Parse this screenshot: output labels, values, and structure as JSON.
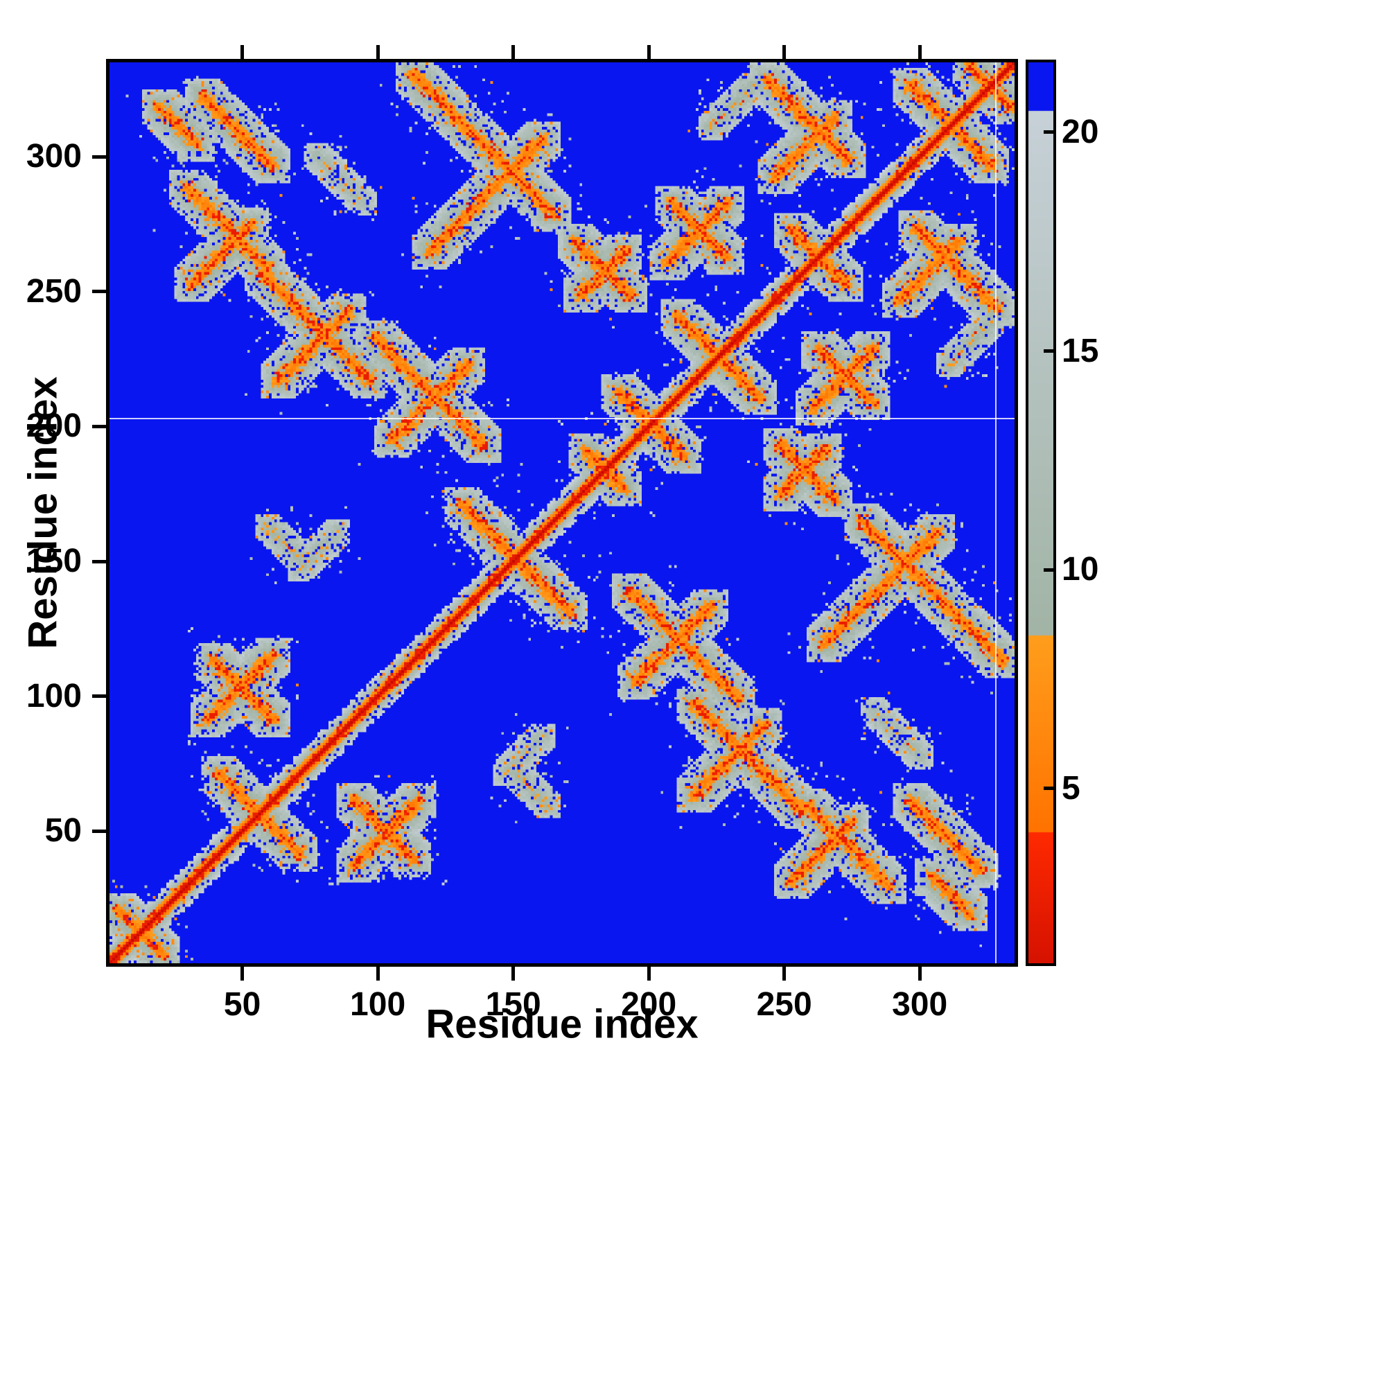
{
  "chart_data": {
    "type": "heatmap",
    "title": "",
    "xlabel": "Residue index",
    "ylabel": "Residue index",
    "x_range": [
      1,
      335
    ],
    "y_range": [
      1,
      335
    ],
    "x_ticks": [
      50,
      100,
      150,
      200,
      250,
      300
    ],
    "y_ticks": [
      50,
      100,
      150,
      200,
      250,
      300
    ],
    "n_residues": 335,
    "grid": false,
    "legend": "colorbar-right",
    "description": "Symmetric residue-residue distance map (contact map) of a ~335-residue protein. Red diagonal = sequential neighbours, orange cores = close contacts, gray halo = mid-range distances, blue = far/no contact.",
    "background_value": 30,
    "diagonal_step": 2.55,
    "missing_residue_lines": {
      "row": 203,
      "col": 328
    },
    "colorbar": {
      "ticks": [
        5,
        10,
        15,
        20
      ],
      "vmin": 1,
      "vmax": 21.6,
      "bands": [
        {
          "name": "red",
          "upto": 4.0,
          "color_lo": "#c80a00",
          "color_hi": "#ff2a00"
        },
        {
          "name": "orange",
          "upto": 8.5,
          "color_lo": "#ff7300",
          "color_hi": "#ff9e1c"
        },
        {
          "name": "gray",
          "upto": 20.5,
          "color_lo": "#a2b4a6",
          "color_hi": "#c7d1d8"
        },
        {
          "name": "blue",
          "upto": 99,
          "color_lo": "#0a16f0",
          "color_hi": "#0a16f0"
        }
      ]
    },
    "contacts": [
      {
        "i": 5,
        "j": 17,
        "len": 14,
        "dir": -1
      },
      {
        "i": 40,
        "j": 70,
        "len": 26,
        "dir": -1
      },
      {
        "i": 36,
        "j": 90,
        "len": 24,
        "dir": 1
      },
      {
        "i": 38,
        "j": 112,
        "len": 22,
        "dir": -1
      },
      {
        "i": 56,
        "j": 256,
        "len": 40,
        "dir": -1
      },
      {
        "i": 62,
        "j": 216,
        "len": 26,
        "dir": 1
      },
      {
        "i": 28,
        "j": 288,
        "len": 30,
        "dir": -1
      },
      {
        "i": 30,
        "j": 252,
        "len": 22,
        "dir": 1
      },
      {
        "i": 18,
        "j": 318,
        "len": 14,
        "dir": -1
      },
      {
        "i": 34,
        "j": 322,
        "len": 26,
        "dir": -1
      },
      {
        "i": 98,
        "j": 232,
        "len": 40,
        "dir": -1
      },
      {
        "i": 104,
        "j": 194,
        "len": 28,
        "dir": 1
      },
      {
        "i": 112,
        "j": 330,
        "len": 52,
        "dir": -1
      },
      {
        "i": 118,
        "j": 264,
        "len": 42,
        "dir": 1
      },
      {
        "i": 130,
        "j": 170,
        "len": 40,
        "dir": -1
      },
      {
        "i": 172,
        "j": 268,
        "len": 20,
        "dir": -1
      },
      {
        "i": 174,
        "j": 248,
        "len": 16,
        "dir": 1
      },
      {
        "i": 176,
        "j": 190,
        "len": 14,
        "dir": -1
      },
      {
        "i": 188,
        "j": 212,
        "len": 18,
        "dir": -1
      },
      {
        "i": 210,
        "j": 240,
        "len": 24,
        "dir": -1
      },
      {
        "i": 206,
        "j": 260,
        "len": 22,
        "dir": 1
      },
      {
        "i": 208,
        "j": 282,
        "len": 20,
        "dir": -1
      },
      {
        "i": 243,
        "j": 328,
        "len": 30,
        "dir": -1
      },
      {
        "i": 246,
        "j": 292,
        "len": 22,
        "dir": 1
      },
      {
        "i": 252,
        "j": 272,
        "len": 20,
        "dir": -1
      },
      {
        "i": 296,
        "j": 326,
        "len": 26,
        "dir": -1
      },
      {
        "i": 318,
        "j": 333,
        "len": 10,
        "dir": -1
      },
      {
        "i": 222,
        "j": 310,
        "len": 16,
        "dir": 1,
        "d": 8,
        "w": 4
      },
      {
        "i": 70,
        "j": 146,
        "len": 14,
        "dir": 1,
        "d": 9,
        "w": 4
      },
      {
        "i": 76,
        "j": 300,
        "len": 18,
        "dir": -1,
        "d": 9,
        "w": 4
      },
      {
        "i": 58,
        "j": 162,
        "len": 12,
        "dir": -1,
        "d": 8,
        "w": 4
      }
    ]
  }
}
